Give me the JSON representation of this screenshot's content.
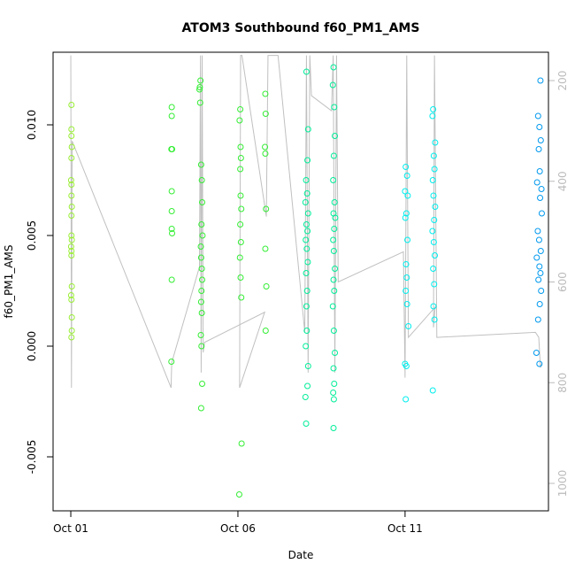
{
  "chart_data": {
    "type": "scatter",
    "title": "ATOM3 Southbound f60_PM1_AMS",
    "xlabel": "Date",
    "ylabel": "f60_PM1_AMS",
    "xlim": [
      0.47,
      15.29
    ],
    "ylim": [
      -0.00744,
      0.01328
    ],
    "y2lim": [
      1054.5,
      143.7
    ],
    "xticks": [
      {
        "value": 1,
        "label": "Oct 01"
      },
      {
        "value": 6,
        "label": "Oct 06"
      },
      {
        "value": 11,
        "label": "Oct 11"
      }
    ],
    "yticks": [
      -0.005,
      {
        "value": 0,
        "label": "0.000"
      },
      0.005,
      {
        "value": 0.01,
        "label": "0.010"
      }
    ],
    "y2ticks": [
      200,
      400,
      600,
      800,
      1000
    ],
    "series": [
      {
        "color": "#99ee33",
        "x": [
          1.02,
          1.02,
          1.02,
          1.03,
          1.02,
          1.01,
          1.02,
          1.02,
          1.03,
          1.02,
          1.02,
          1.03,
          1.01,
          1.02,
          1.02,
          1.03,
          1.01,
          1.02,
          1.03,
          1.03,
          1.02
        ],
        "values": [
          0.0109,
          0.0098,
          0.0095,
          0.009,
          0.0085,
          0.0075,
          0.0073,
          0.0068,
          0.0063,
          0.0059,
          0.005,
          0.0048,
          0.0045,
          0.0043,
          0.0041,
          0.0027,
          0.0023,
          0.0021,
          0.0013,
          0.0007,
          0.0004
        ]
      },
      {
        "color": "#33ee33",
        "x": [
          4.02,
          4.02,
          4.01,
          4.03,
          4.02,
          4.02,
          4.02,
          4.03,
          4.02,
          4.01,
          4.88,
          4.86,
          4.85,
          4.87,
          4.9,
          4.92,
          4.93,
          4.91,
          4.94,
          4.89,
          4.9,
          4.92,
          4.93,
          4.91,
          4.9,
          4.92,
          4.89,
          4.91,
          4.93,
          4.9,
          6.07,
          6.05,
          6.08,
          6.09,
          6.07,
          6.08,
          6.1,
          6.07,
          6.09,
          6.06,
          6.08,
          6.1,
          6.11,
          6.04,
          6.82,
          6.83,
          6.81,
          6.82,
          6.84,
          6.82,
          6.85,
          6.83
        ],
        "values": [
          0.0108,
          0.0104,
          0.0089,
          0.0089,
          0.007,
          0.0061,
          0.0053,
          0.0051,
          0.003,
          -0.0007,
          0.012,
          0.0117,
          0.0116,
          0.011,
          0.0082,
          0.0075,
          0.0065,
          0.0055,
          0.005,
          0.0045,
          0.004,
          0.0035,
          0.003,
          0.0025,
          0.002,
          0.0015,
          0.0005,
          0.0,
          -0.0017,
          -0.0028,
          0.0107,
          0.0102,
          0.009,
          0.0085,
          0.008,
          0.0068,
          0.0062,
          0.0055,
          0.0047,
          0.004,
          0.0031,
          0.0022,
          -0.0044,
          -0.0067,
          0.0114,
          0.0105,
          0.009,
          0.0087,
          0.0062,
          0.0044,
          0.0027,
          0.0007
        ]
      },
      {
        "color": "#00ee99",
        "x": [
          8.05,
          8.1,
          8.08,
          8.04,
          8.07,
          8.02,
          8.1,
          8.05,
          8.08,
          8.03,
          8.06,
          8.09,
          8.04,
          8.07,
          8.05,
          8.06,
          8.03,
          8.1,
          8.08,
          8.02,
          8.04,
          8.86,
          8.84,
          8.88,
          8.9,
          8.87,
          8.85,
          8.89,
          8.86,
          8.91,
          8.88,
          8.85,
          8.87,
          8.9,
          8.86,
          8.88,
          8.84,
          8.87,
          8.9,
          8.86,
          8.88,
          8.85,
          8.87,
          8.86
        ],
        "values": [
          0.0124,
          0.0098,
          0.0084,
          0.0075,
          0.0069,
          0.0065,
          0.006,
          0.0055,
          0.0052,
          0.0048,
          0.0044,
          0.0038,
          0.0033,
          0.0025,
          0.0018,
          0.0007,
          0.0,
          -0.0009,
          -0.0018,
          -0.0023,
          -0.0035,
          0.0126,
          0.0118,
          0.0108,
          0.0095,
          0.0086,
          0.0075,
          0.0065,
          0.006,
          0.0058,
          0.0053,
          0.0048,
          0.0043,
          0.0035,
          0.003,
          0.0025,
          0.0018,
          0.0007,
          -0.0003,
          -0.001,
          -0.0017,
          -0.0021,
          -0.0024,
          -0.0037
        ]
      },
      {
        "color": "#00eeee",
        "x": [
          11.02,
          11.06,
          11.0,
          11.08,
          11.04,
          11.01,
          11.07,
          11.03,
          11.05,
          11.02,
          11.06,
          11.1,
          11.0,
          11.04,
          11.02,
          11.84,
          11.82,
          11.9,
          11.86,
          11.88,
          11.83,
          11.85,
          11.9,
          11.87,
          11.82,
          11.86,
          11.89,
          11.84,
          11.87,
          11.85,
          11.88,
          11.83
        ],
        "values": [
          0.0081,
          0.0077,
          0.007,
          0.0068,
          0.006,
          0.0058,
          0.0048,
          0.0037,
          0.0031,
          0.0025,
          0.0019,
          0.0009,
          -0.0008,
          -0.0009,
          -0.0024,
          0.0107,
          0.0104,
          0.0092,
          0.0086,
          0.008,
          0.0075,
          0.0068,
          0.0063,
          0.0057,
          0.0052,
          0.0047,
          0.0041,
          0.0035,
          0.0028,
          0.0018,
          0.0012,
          -0.002
        ]
      },
      {
        "color": "#0099ee",
        "x": [
          15.05,
          14.98,
          15.02,
          15.06,
          15.0,
          15.03,
          14.95,
          15.08,
          15.04,
          15.09,
          14.97,
          15.01,
          15.06,
          14.94,
          15.02,
          15.05,
          14.99,
          15.07,
          15.03,
          14.98,
          14.93,
          15.02
        ],
        "values": [
          0.012,
          0.0104,
          0.0099,
          0.0093,
          0.0089,
          0.0079,
          0.0074,
          0.0071,
          0.0067,
          0.006,
          0.0052,
          0.0048,
          0.0043,
          0.004,
          0.0036,
          0.0033,
          0.003,
          0.0025,
          0.0019,
          0.0012,
          -0.0003,
          -0.0008
        ]
      },
      {
        "type": "line",
        "axis": "y2",
        "color": "#c0c0c0",
        "x": [
          1.0,
          1.02,
          1.04,
          4.0,
          4.02,
          4.85,
          4.88,
          4.9,
          4.93,
          4.96,
          5.0,
          6.8,
          6.05,
          6.08,
          6.12,
          6.85,
          6.9,
          7.2,
          8.0,
          8.05,
          8.1,
          8.15,
          8.2,
          8.8,
          8.85,
          8.9,
          8.95,
          9.0,
          10.95,
          11.0,
          11.05,
          11.1,
          11.9,
          11.85,
          11.88,
          11.95,
          14.9,
          15.0,
          15.05,
          15.1
        ],
        "values": [
          150,
          810,
          320,
          810,
          760,
          570,
          150,
          780,
          150,
          740,
          720,
          660,
          810,
          150,
          150,
          470,
          150,
          150,
          700,
          150,
          780,
          150,
          230,
          260,
          150,
          780,
          150,
          600,
          540,
          790,
          150,
          710,
          650,
          690,
          150,
          710,
          700,
          710,
          770,
          760
        ]
      }
    ]
  }
}
